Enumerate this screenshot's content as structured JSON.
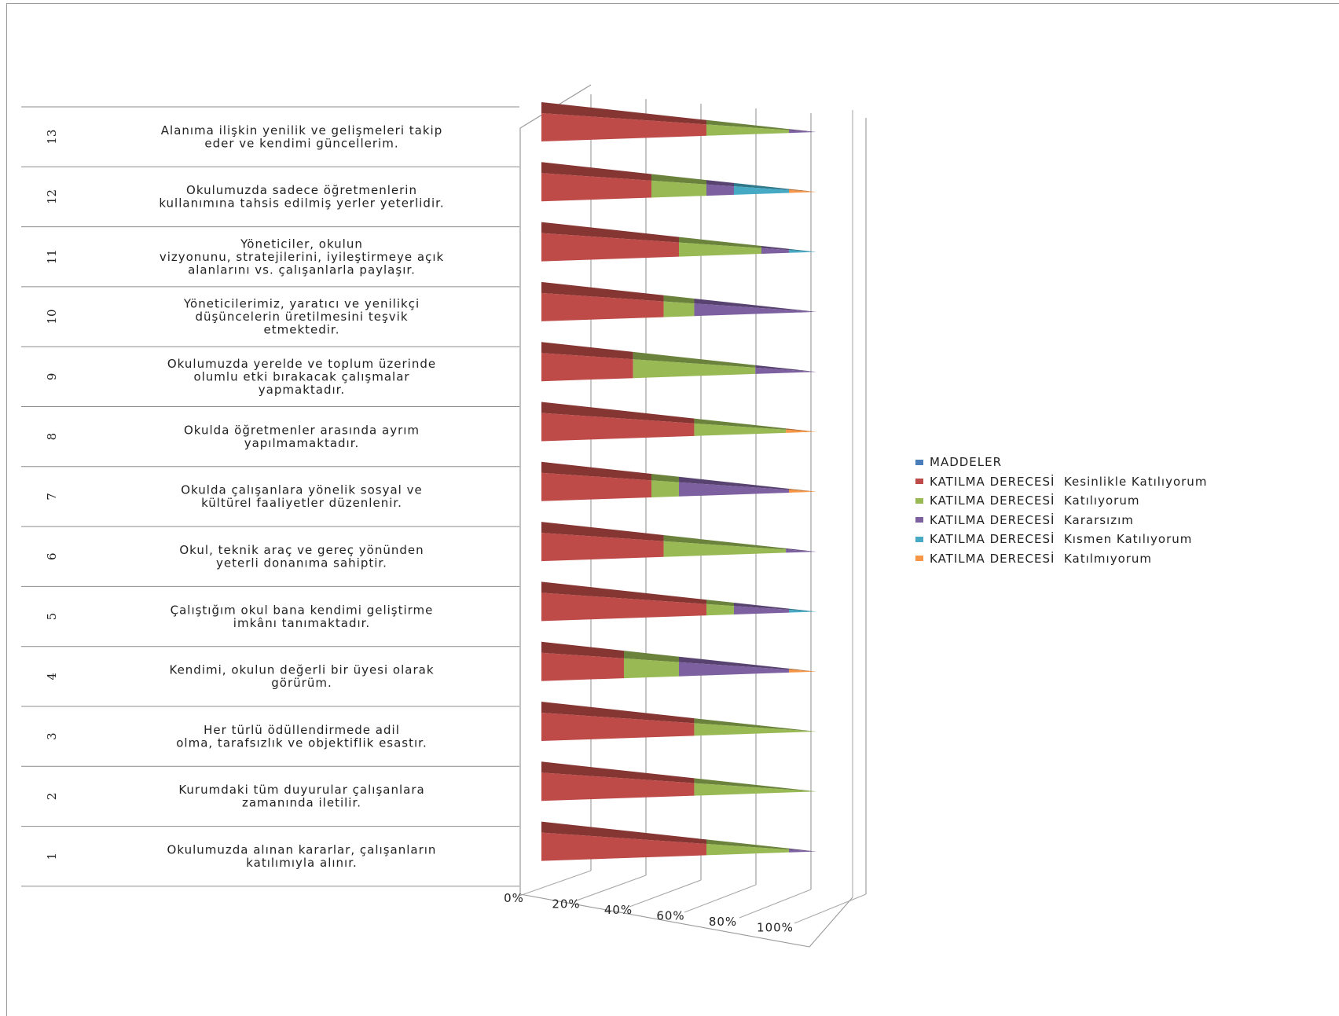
{
  "chart_data": {
    "type": "bar",
    "variant": "3d-cone-stacked-100-percent-horizontal",
    "title": "",
    "x_ticks": [
      "0%",
      "20%",
      "40%",
      "60%",
      "80%",
      "100%"
    ],
    "xlim": [
      0,
      100
    ],
    "legend_position": "right",
    "categories": [
      {
        "num": "1",
        "text": [
          "Okulumuzda alınan kararlar, çalışanların",
          "katılımıyla alınır."
        ]
      },
      {
        "num": "2",
        "text": [
          "Kurumdaki tüm duyurular çalışanlara",
          "zamanında iletilir."
        ]
      },
      {
        "num": "3",
        "text": [
          "Her türlü ödüllendirmede adil",
          "olma, tarafsızlık  ve objektiflik esastır."
        ]
      },
      {
        "num": "4",
        "text": [
          "Kendimi, okulun değerli bir üyesi olarak",
          "görürüm."
        ]
      },
      {
        "num": "5",
        "text": [
          "Çalıştığım okul bana kendimi geliştirme",
          "imkânı tanımaktadır."
        ]
      },
      {
        "num": "6",
        "text": [
          "Okul, teknik araç ve gereç yönünden",
          "yeterli donanıma sahiptir."
        ]
      },
      {
        "num": "7",
        "text": [
          "Okulda çalışanlara  yönelik sosyal ve",
          "kültürel faaliyetler düzenlenir."
        ]
      },
      {
        "num": "8",
        "text": [
          "Okulda öğretmenler arasında ayrım",
          "yapılmamaktadır."
        ]
      },
      {
        "num": "9",
        "text": [
          "Okulumuzda yerelde ve toplum üzerinde",
          "olumlu etki bırakacak çalışmalar",
          "yapmaktadır."
        ]
      },
      {
        "num": "10",
        "text": [
          "Yöneticilerimiz, yaratıcı ve yenilikçi",
          "düşüncelerin üretilmesini teşvik",
          "etmektedir."
        ]
      },
      {
        "num": "11",
        "text": [
          "Yöneticiler, okulun",
          "vizyonunu, stratejilerini, iyileştirmeye açık",
          "alanlarını vs. çalışanlarla paylaşır."
        ]
      },
      {
        "num": "12",
        "text": [
          "Okulumuzda sadece öğretmenlerin",
          "kullanımına tahsis edilmiş yerler yeterlidir."
        ]
      },
      {
        "num": "13",
        "text": [
          "Alanıma ilişkin yenilik ve gelişmeleri takip",
          "eder ve kendimi güncellerim."
        ]
      }
    ],
    "series": [
      {
        "name": "MADDELER",
        "color": "#4a7ebb",
        "values": [
          0,
          0,
          0,
          0,
          0,
          0,
          0,
          0,
          0,
          0,
          0,
          0,
          0
        ]
      },
      {
        "name": "KATILMA DERECESİ  Kesinlikle Katılıyorum",
        "color": "#be4b48",
        "values": [
          60,
          50,
          50,
          30,
          60,
          40,
          40,
          50,
          30,
          40,
          50,
          40,
          60
        ]
      },
      {
        "name": "KATILMA DERECESİ  Katılıyorum",
        "color": "#98b954",
        "values": [
          30,
          40,
          40,
          20,
          10,
          40,
          10,
          30,
          40,
          10,
          30,
          20,
          30
        ]
      },
      {
        "name": "KATILMA DERECESİ  Kararsızım",
        "color": "#7d60a0",
        "values": [
          10,
          0,
          0,
          40,
          20,
          10,
          40,
          0,
          20,
          40,
          10,
          10,
          10
        ]
      },
      {
        "name": "KATILMA DERECESİ  Kısmen Katılıyorum",
        "color": "#46aac5",
        "values": [
          0,
          0,
          0,
          0,
          10,
          0,
          0,
          0,
          0,
          0,
          10,
          20,
          0
        ]
      },
      {
        "name": "KATILMA DERECESİ  Katılmıyorum",
        "color": "#f79646",
        "values": [
          0,
          0,
          0,
          10,
          0,
          0,
          10,
          10,
          0,
          0,
          0,
          10,
          0
        ]
      }
    ]
  }
}
